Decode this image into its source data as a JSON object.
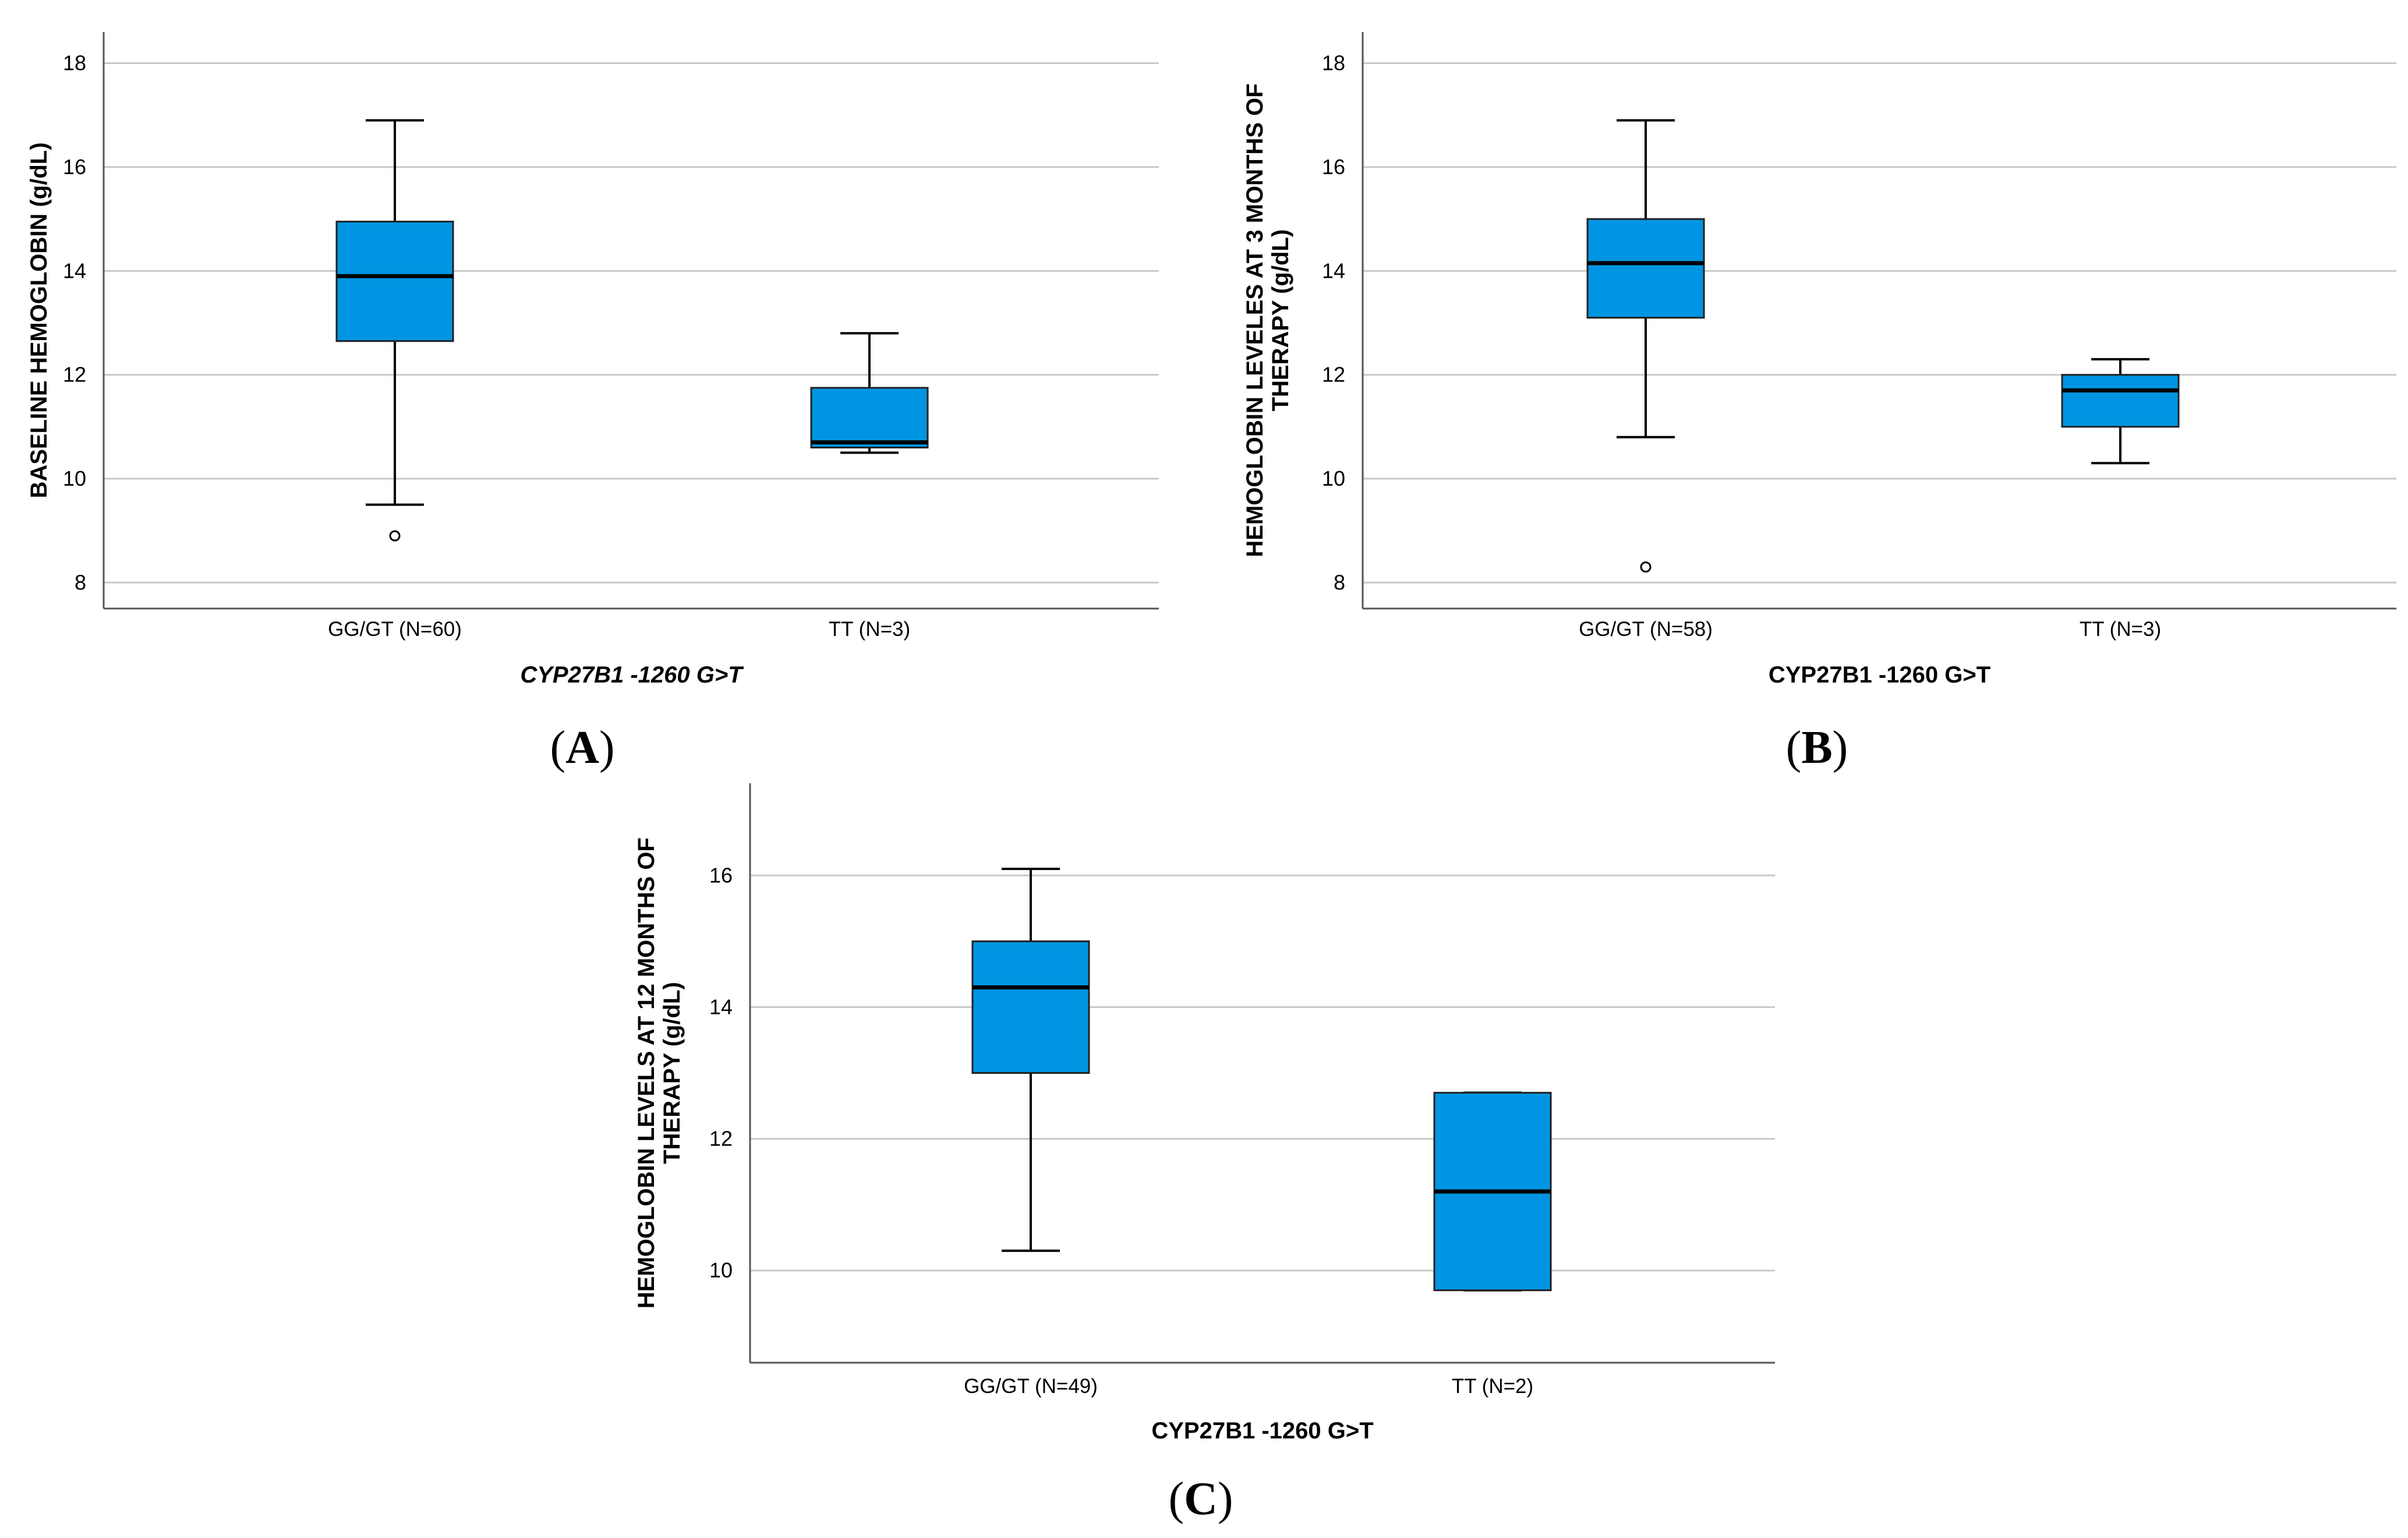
{
  "chart_data": [
    {
      "type": "boxplot",
      "panel_label": "A",
      "ylabel_lines": [
        "BASELINE HEMOGLOBIN (g/dL)"
      ],
      "xlabel": "CYP27B1 -1260 G>T",
      "xlabel_italic": true,
      "ylim": [
        7.5,
        18.6
      ],
      "yticks": [
        8,
        10,
        12,
        14,
        16,
        18
      ],
      "grid": true,
      "categories": [
        "GG/GT (N=60)",
        "TT (N=3)"
      ],
      "boxes": [
        {
          "whisker_low": 9.5,
          "q1": 12.65,
          "median": 13.9,
          "q3": 14.95,
          "whisker_high": 16.9,
          "outliers": [
            8.9
          ]
        },
        {
          "whisker_low": 10.5,
          "q1": 10.6,
          "median": 10.7,
          "q3": 11.75,
          "whisker_high": 12.8,
          "outliers": []
        }
      ],
      "box_color": "#0095e2"
    },
    {
      "type": "boxplot",
      "panel_label": "B",
      "ylabel_lines": [
        "HEMOGLOBIN LEVELES AT 3 MONTHS OF",
        "THERAPY (g/dL)"
      ],
      "xlabel": "CYP27B1 -1260 G>T",
      "xlabel_italic": false,
      "ylim": [
        7.5,
        18.6
      ],
      "yticks": [
        8,
        10,
        12,
        14,
        16,
        18
      ],
      "grid": true,
      "categories": [
        "GG/GT (N=58)",
        "TT (N=3)"
      ],
      "boxes": [
        {
          "whisker_low": 10.8,
          "q1": 13.1,
          "median": 14.15,
          "q3": 15.0,
          "whisker_high": 16.9,
          "outliers": [
            8.3
          ]
        },
        {
          "whisker_low": 10.3,
          "q1": 11.0,
          "median": 11.7,
          "q3": 12.0,
          "whisker_high": 12.3,
          "outliers": []
        }
      ],
      "box_color": "#0095e2"
    },
    {
      "type": "boxplot",
      "panel_label": "C",
      "ylabel_lines": [
        "HEMOGLOBIN LEVELS AT 12 MONTHS OF",
        "THERAPY (g/dL)"
      ],
      "xlabel": "CYP27B1 -1260 G>T",
      "xlabel_italic": false,
      "ylim": [
        8.6,
        17.4
      ],
      "yticks": [
        10,
        12,
        14,
        16
      ],
      "grid": true,
      "categories": [
        "GG/GT (N=49)",
        "TT (N=2)"
      ],
      "boxes": [
        {
          "whisker_low": 10.3,
          "q1": 13.0,
          "median": 14.3,
          "q3": 15.0,
          "whisker_high": 16.1,
          "outliers": []
        },
        {
          "whisker_low": 9.7,
          "q1": 9.7,
          "median": 11.2,
          "q3": 12.7,
          "whisker_high": 12.7,
          "outliers": []
        }
      ],
      "box_color": "#0095e2"
    }
  ]
}
